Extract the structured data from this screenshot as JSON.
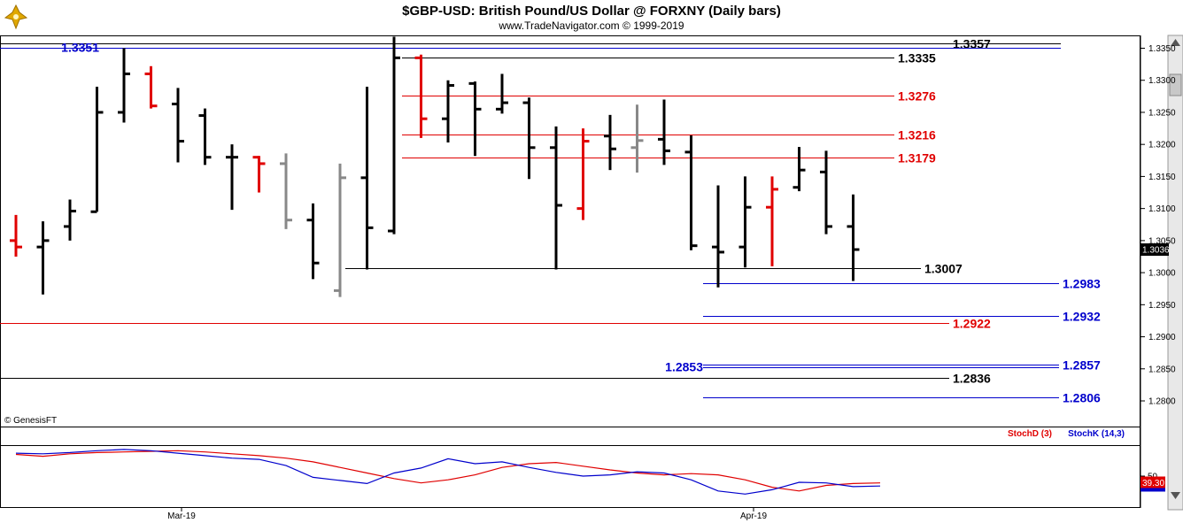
{
  "header": {
    "title": "$GBP-USD:  British Pound/US Dollar @ FORXNY  (Daily bars)",
    "subtitle": "www.TradeNavigator.com © 1999-2019"
  },
  "logo_text": "GenesisFT",
  "copyright": "© GenesisFT",
  "chart_data": [
    {
      "type": "ohlc",
      "ylim": [
        1.276,
        1.337
      ],
      "yticks": [
        "1.2800",
        "1.2850",
        "1.2900",
        "1.2950",
        "1.3000",
        "1.3050",
        "1.3100",
        "1.3150",
        "1.3200",
        "1.3250",
        "1.3300",
        "1.3350"
      ],
      "xlabels": [
        "Mar-19",
        "Apr-19"
      ],
      "last_price": "1.3036",
      "bars": [
        {
          "o": 1.305,
          "h": 1.309,
          "l": 1.3025,
          "c": 1.304,
          "color": "red"
        },
        {
          "o": 1.304,
          "h": 1.308,
          "l": 1.2966,
          "c": 1.305,
          "color": "black"
        },
        {
          "o": 1.3072,
          "h": 1.3114,
          "l": 1.305,
          "c": 1.3096,
          "color": "black"
        },
        {
          "o": 1.3095,
          "h": 1.329,
          "l": 1.3095,
          "c": 1.325,
          "color": "black"
        },
        {
          "o": 1.325,
          "h": 1.335,
          "l": 1.3234,
          "c": 1.331,
          "color": "black"
        },
        {
          "o": 1.331,
          "h": 1.3322,
          "l": 1.3256,
          "c": 1.326,
          "color": "red"
        },
        {
          "o": 1.3263,
          "h": 1.3288,
          "l": 1.3172,
          "c": 1.3205,
          "color": "black"
        },
        {
          "o": 1.3245,
          "h": 1.3256,
          "l": 1.3168,
          "c": 1.318,
          "color": "black"
        },
        {
          "o": 1.318,
          "h": 1.32,
          "l": 1.3098,
          "c": 1.318,
          "color": "black"
        },
        {
          "o": 1.318,
          "h": 1.3182,
          "l": 1.3125,
          "c": 1.317,
          "color": "red"
        },
        {
          "o": 1.317,
          "h": 1.3186,
          "l": 1.3068,
          "c": 1.3082,
          "color": "gray"
        },
        {
          "o": 1.3082,
          "h": 1.3108,
          "l": 1.299,
          "c": 1.3015,
          "color": "black"
        },
        {
          "o": 1.2972,
          "h": 1.317,
          "l": 1.2962,
          "c": 1.3148,
          "color": "gray"
        },
        {
          "o": 1.3148,
          "h": 1.329,
          "l": 1.3005,
          "c": 1.307,
          "color": "black"
        },
        {
          "o": 1.3065,
          "h": 1.3368,
          "l": 1.306,
          "c": 1.3335,
          "color": "black"
        },
        {
          "o": 1.3335,
          "h": 1.334,
          "l": 1.321,
          "c": 1.324,
          "color": "red"
        },
        {
          "o": 1.324,
          "h": 1.33,
          "l": 1.3203,
          "c": 1.3292,
          "color": "black"
        },
        {
          "o": 1.3295,
          "h": 1.3298,
          "l": 1.3182,
          "c": 1.3255,
          "color": "black"
        },
        {
          "o": 1.3255,
          "h": 1.331,
          "l": 1.3248,
          "c": 1.3265,
          "color": "black"
        },
        {
          "o": 1.3265,
          "h": 1.3273,
          "l": 1.3146,
          "c": 1.3195,
          "color": "black"
        },
        {
          "o": 1.3195,
          "h": 1.3228,
          "l": 1.3005,
          "c": 1.3105,
          "color": "black"
        },
        {
          "o": 1.31,
          "h": 1.3225,
          "l": 1.3082,
          "c": 1.3205,
          "color": "red"
        },
        {
          "o": 1.3213,
          "h": 1.3246,
          "l": 1.316,
          "c": 1.3193,
          "color": "black"
        },
        {
          "o": 1.3195,
          "h": 1.3262,
          "l": 1.3156,
          "c": 1.3206,
          "color": "gray"
        },
        {
          "o": 1.3208,
          "h": 1.327,
          "l": 1.3168,
          "c": 1.319,
          "color": "black"
        },
        {
          "o": 1.3188,
          "h": 1.3214,
          "l": 1.3035,
          "c": 1.3042,
          "color": "black"
        },
        {
          "o": 1.304,
          "h": 1.3136,
          "l": 1.2977,
          "c": 1.3032,
          "color": "black"
        },
        {
          "o": 1.304,
          "h": 1.315,
          "l": 1.3008,
          "c": 1.3102,
          "color": "black"
        },
        {
          "o": 1.3102,
          "h": 1.315,
          "l": 1.301,
          "c": 1.313,
          "color": "red"
        },
        {
          "o": 1.3133,
          "h": 1.3196,
          "l": 1.3127,
          "c": 1.316,
          "color": "black"
        },
        {
          "o": 1.3157,
          "h": 1.319,
          "l": 1.306,
          "c": 1.3072,
          "color": "black"
        },
        {
          "o": 1.3072,
          "h": 1.3122,
          "l": 1.2987,
          "c": 1.3036,
          "color": "black"
        }
      ],
      "levels": [
        {
          "value": 1.3357,
          "label": "1.3357",
          "color": "black"
        },
        {
          "value": 1.3351,
          "label": "1.3351",
          "color": "blue"
        },
        {
          "value": 1.3335,
          "label": "1.3335",
          "color": "black"
        },
        {
          "value": 1.3276,
          "label": "1.3276",
          "color": "red"
        },
        {
          "value": 1.3216,
          "label": "1.3216",
          "color": "red"
        },
        {
          "value": 1.3179,
          "label": "1.3179",
          "color": "red"
        },
        {
          "value": 1.3007,
          "label": "1.3007",
          "color": "black"
        },
        {
          "value": 1.2983,
          "label": "1.2983",
          "color": "blue"
        },
        {
          "value": 1.2932,
          "label": "1.2932",
          "color": "blue"
        },
        {
          "value": 1.2922,
          "label": "1.2922",
          "color": "red"
        },
        {
          "value": 1.2857,
          "label": "1.2857",
          "color": "blue"
        },
        {
          "value": 1.2853,
          "label": "1.2853",
          "color": "blue"
        },
        {
          "value": 1.2836,
          "label": "1.2836",
          "color": "black"
        },
        {
          "value": 1.2806,
          "label": "1.2806",
          "color": "blue"
        }
      ]
    },
    {
      "type": "line",
      "ylim": [
        0,
        100
      ],
      "yticks": [
        "50"
      ],
      "last_value": "39.30",
      "series": [
        {
          "name": "StochD (3)",
          "color": "#e00000",
          "values": [
            85,
            82,
            86,
            88,
            89,
            90,
            91,
            89,
            86,
            83,
            79,
            73,
            64,
            55,
            46,
            39,
            44,
            52,
            64,
            70,
            72,
            66,
            60,
            55,
            52,
            54,
            52,
            44,
            32,
            26,
            35,
            38,
            39
          ]
        },
        {
          "name": "StochK (14,3)",
          "color": "#0000cc",
          "values": [
            87,
            86,
            88,
            91,
            93,
            91,
            87,
            83,
            79,
            77,
            67,
            48,
            43,
            38,
            55,
            63,
            78,
            70,
            73,
            64,
            56,
            50,
            52,
            57,
            55,
            44,
            26,
            21,
            28,
            40,
            39,
            33,
            34
          ]
        }
      ]
    }
  ]
}
